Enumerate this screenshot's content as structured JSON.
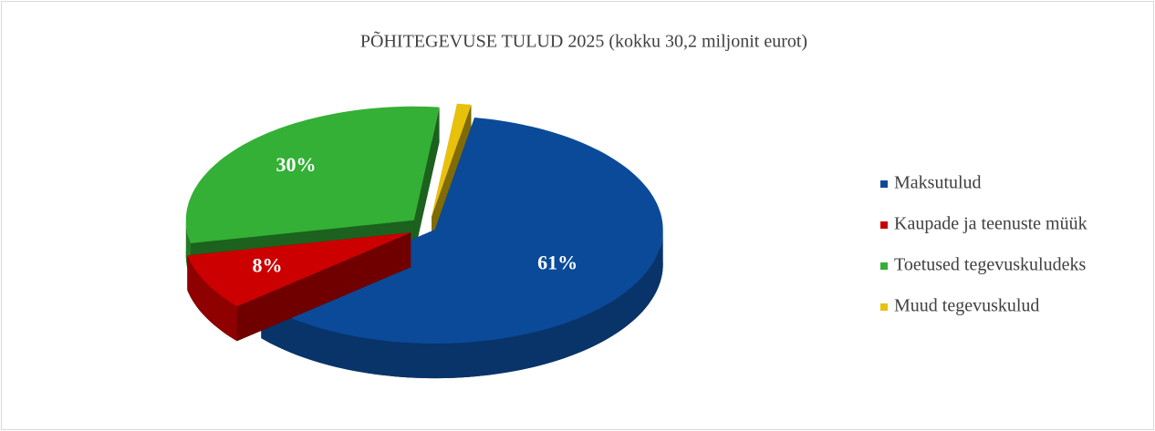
{
  "chart_data": {
    "type": "pie",
    "title": "PÕHITEGEVUSE TULUD 2025 (kokku 30,2 miljonit eurot)",
    "categories": [
      "Maksutulud",
      "Kaupade ja teenuste müük",
      "Toetused tegevuskuludeks",
      "Muud tegevuskulud"
    ],
    "values": [
      61,
      8,
      30,
      1
    ],
    "value_labels": [
      "61%",
      "8%",
      "30%",
      null
    ],
    "colors": [
      "#0b4a98",
      "#cc0000",
      "#33b035",
      "#e8c20a"
    ],
    "legend": "right"
  }
}
